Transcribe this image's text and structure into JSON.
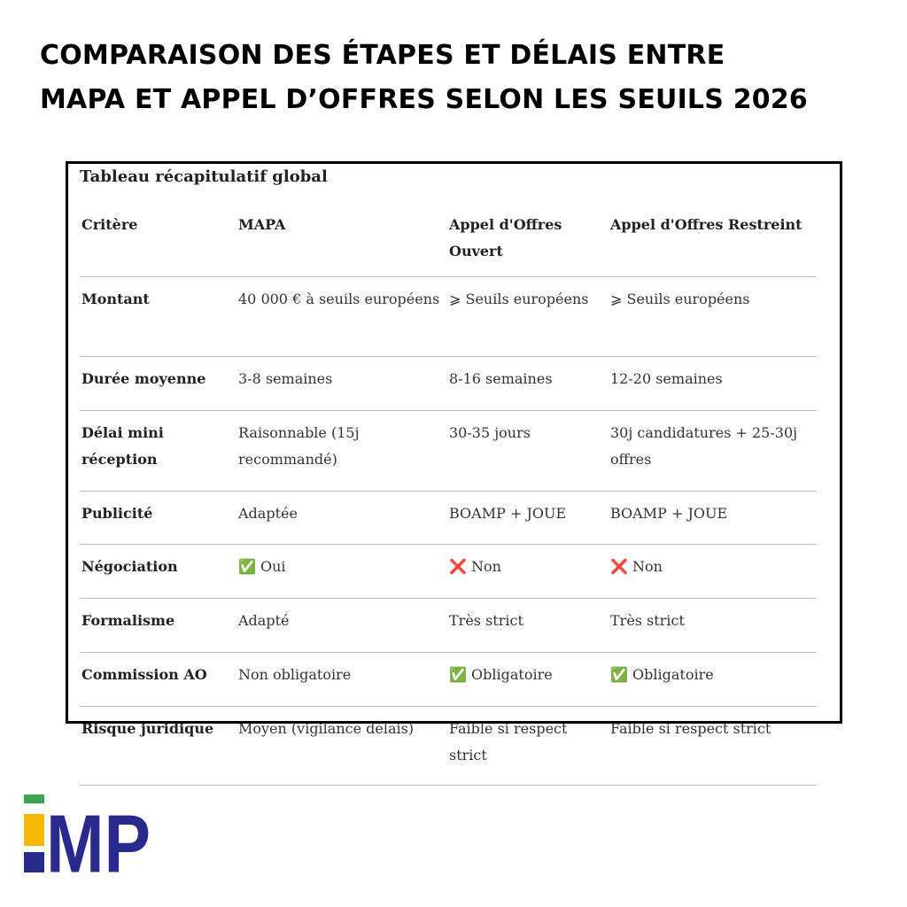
{
  "header": {
    "title_lines": [
      "COMPARAISON DES ÉTAPES ET DÉLAIS ENTRE",
      "MAPA ET APPEL D’OFFRES SELON LES SEUILS 2026"
    ]
  },
  "table": {
    "caption": "Tableau récapitulatif global",
    "columns": [
      "Critère",
      "MAPA",
      "Appel d'Offres Ouvert",
      "Appel d'Offres Restreint"
    ],
    "rows": [
      [
        "Montant",
        "40 000 € à seuils européens",
        "⩾ Seuils européens",
        "⩾ Seuils européens"
      ],
      [
        "Durée moyenne",
        "3-8 semaines",
        "8-16 semaines",
        "12-20 semaines"
      ],
      [
        "Délai mini réception",
        "Raisonnable (15j recommandé)",
        "30-35 jours",
        "30j candidatures + 25-30j offres"
      ],
      [
        "Publicité",
        "Adaptée",
        "BOAMP + JOUE",
        "BOAMP + JOUE"
      ],
      [
        "Négociation",
        "✅ Oui",
        "❌ Non",
        "❌ Non"
      ],
      [
        "Formalisme",
        "Adapté",
        "Très strict",
        "Très strict"
      ],
      [
        "Commission AO",
        "Non obligatoire",
        "✅ Obligatoire",
        "✅ Obligatoire"
      ],
      [
        "Risque juridique",
        "Moyen (vigilance délais)",
        "Faible si respect strict",
        "Faible si respect strict"
      ]
    ]
  },
  "logo": {
    "text": "MP"
  }
}
